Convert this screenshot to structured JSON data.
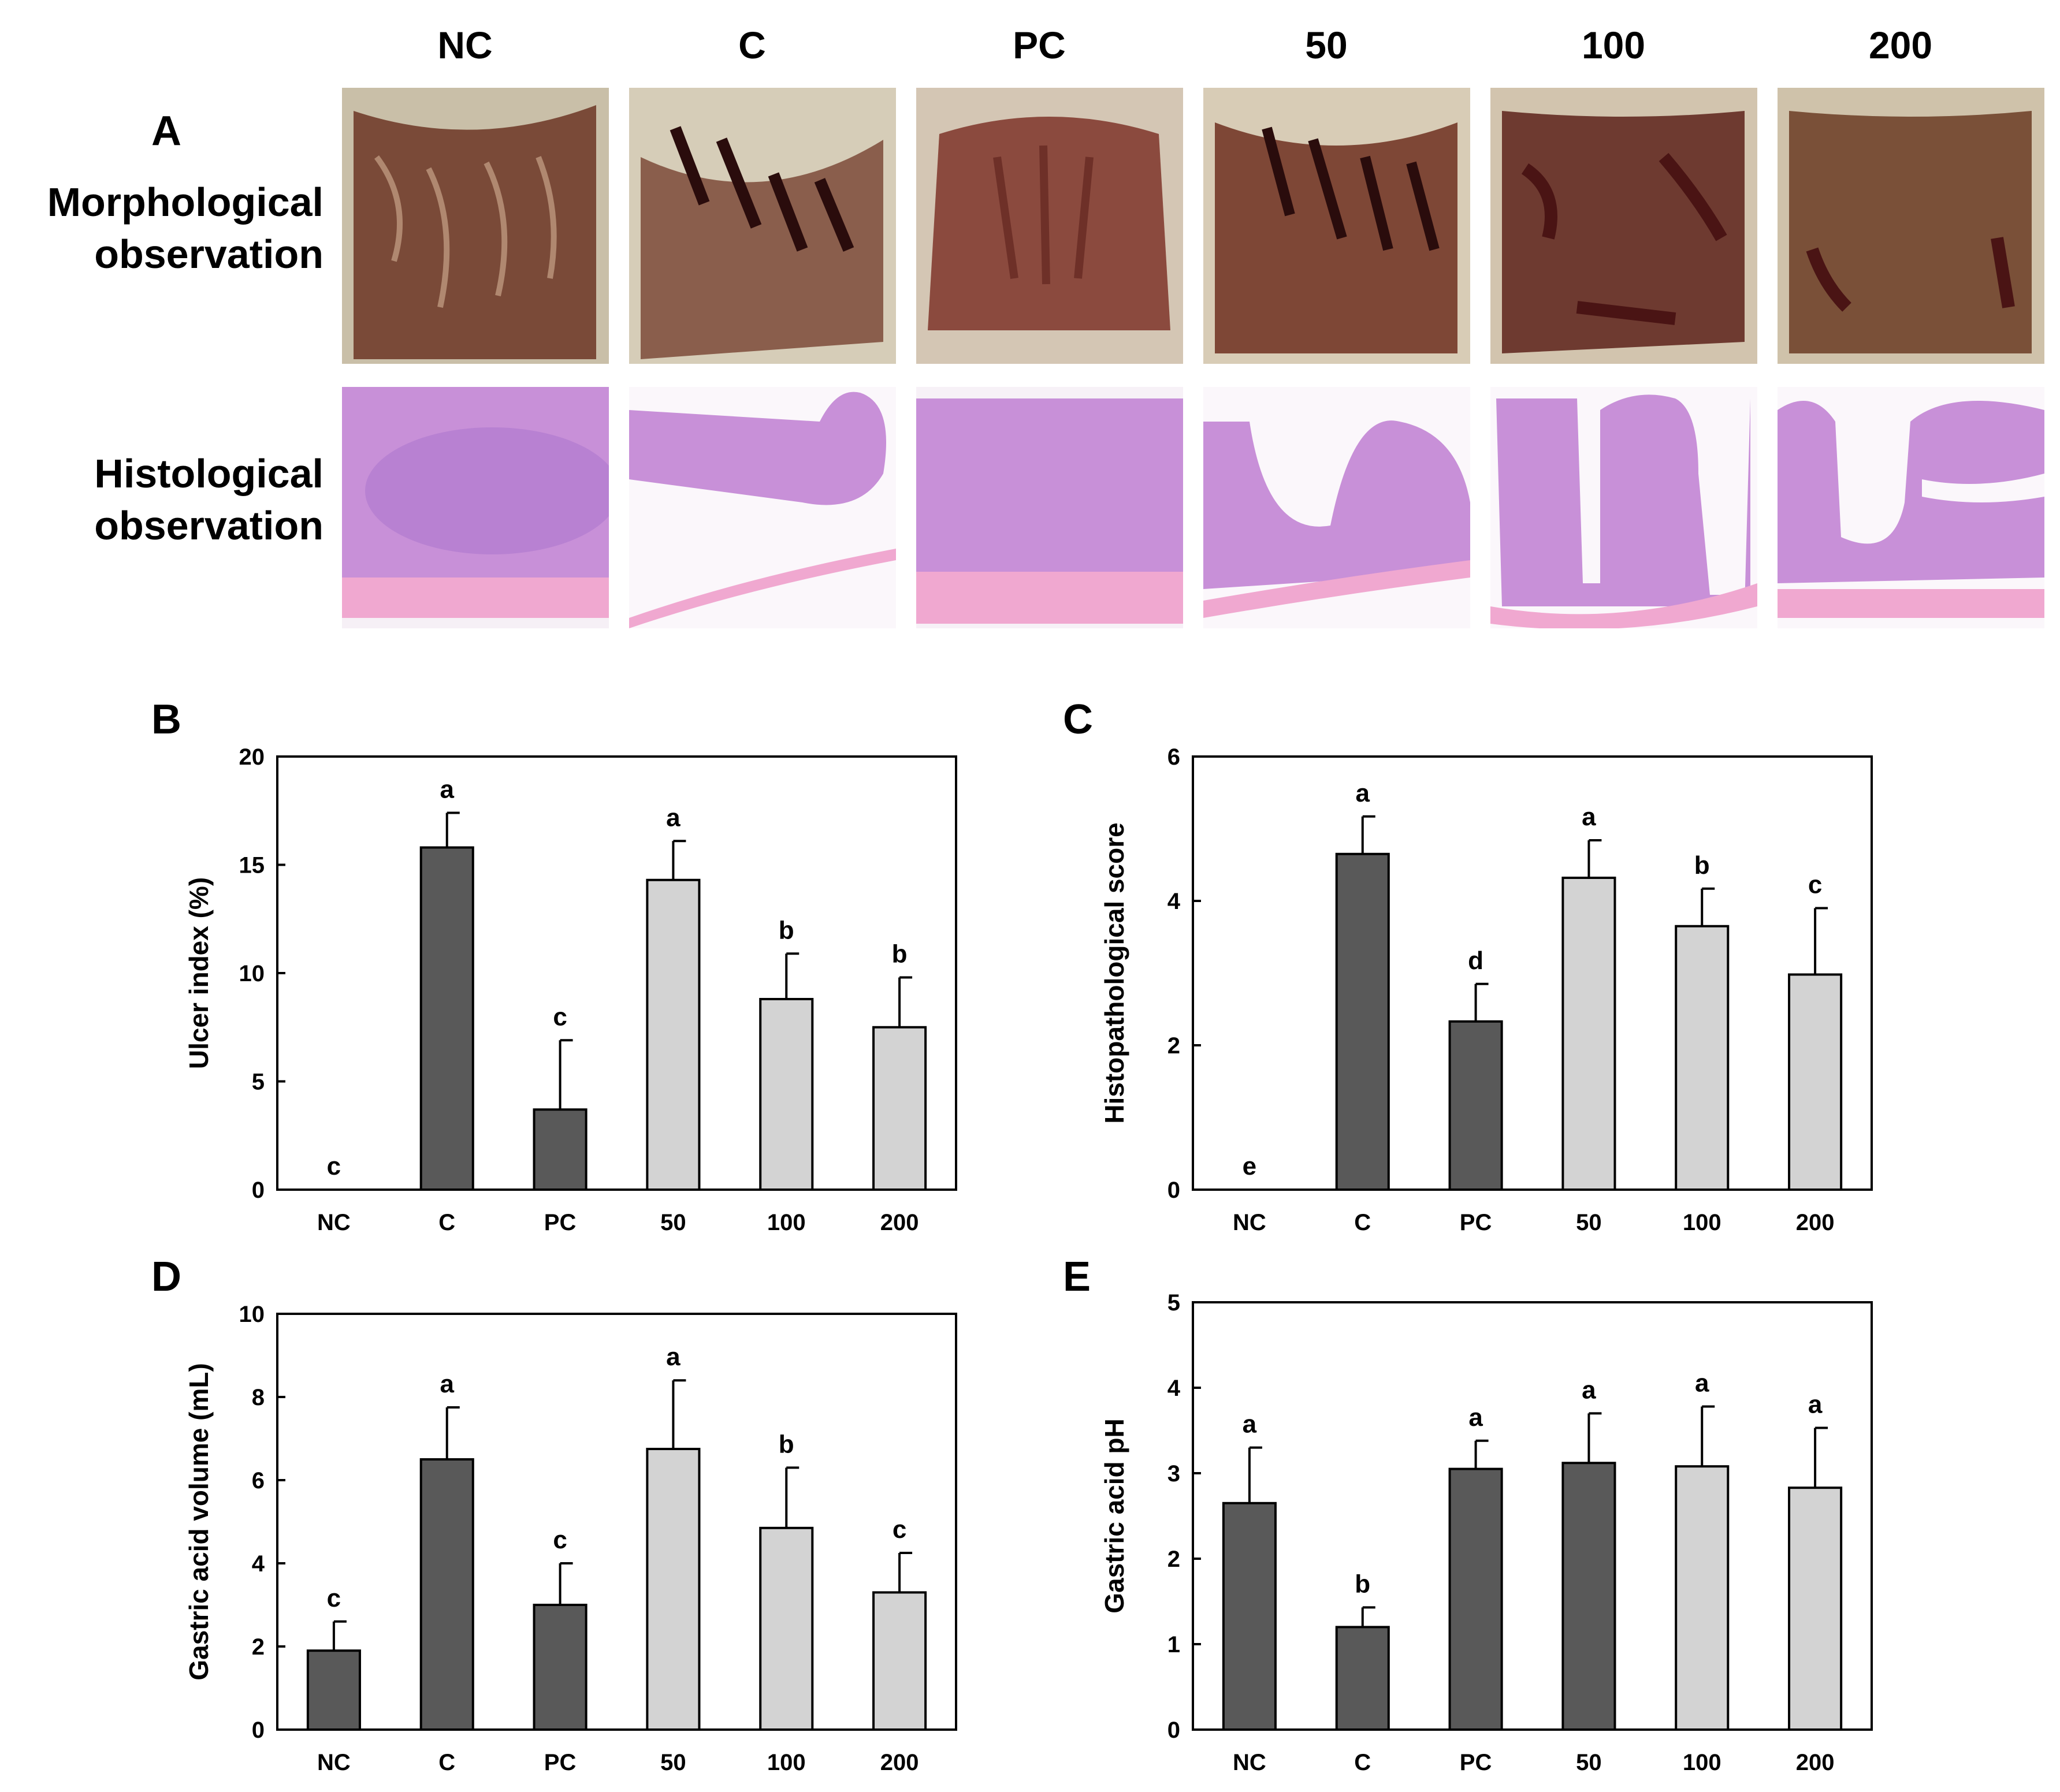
{
  "figure": {
    "columns": [
      "NC",
      "C",
      "PC",
      "50",
      "100",
      "200"
    ],
    "panel_a": {
      "letter": "A",
      "morph_label": [
        "Morphological",
        "observation"
      ],
      "histo_label": [
        "Histological",
        "observation"
      ]
    }
  },
  "colors": {
    "dark_bar": "#595959",
    "light_bar": "#d3d3d3",
    "stomach_base": "#7a4a3a",
    "stomach_edge": "#c9b9a0",
    "ulcer": "#2a0c0c",
    "tissue_purple": "#c08ad8",
    "tissue_pink": "#f0a8d0"
  },
  "chart_data": [
    {
      "panel": "B",
      "type": "bar",
      "categories": [
        "NC",
        "C",
        "PC",
        "50",
        "100",
        "200"
      ],
      "values": [
        0,
        15.8,
        3.7,
        14.3,
        8.8,
        7.5
      ],
      "errors": [
        0,
        1.6,
        3.2,
        1.8,
        2.1,
        2.3
      ],
      "letters": [
        "c",
        "a",
        "c",
        "a",
        "b",
        "b"
      ],
      "ylabel": "Ulcer index (%)",
      "ylim": [
        0,
        20
      ],
      "yticks": [
        0,
        5,
        10,
        15,
        20
      ],
      "bar_colors": [
        "dark",
        "dark",
        "dark",
        "light",
        "light",
        "light"
      ]
    },
    {
      "panel": "C",
      "type": "bar",
      "categories": [
        "NC",
        "C",
        "PC",
        "50",
        "100",
        "200"
      ],
      "values": [
        0,
        4.65,
        2.33,
        4.32,
        3.65,
        2.98
      ],
      "errors": [
        0,
        0.52,
        0.52,
        0.52,
        0.52,
        0.92
      ],
      "letters": [
        "e",
        "a",
        "d",
        "a",
        "b",
        "c"
      ],
      "ylabel": "Histopathological score",
      "ylim": [
        0,
        6
      ],
      "yticks": [
        0,
        2,
        4,
        6
      ],
      "bar_colors": [
        "dark",
        "dark",
        "dark",
        "light",
        "light",
        "light"
      ]
    },
    {
      "panel": "D",
      "type": "bar",
      "categories": [
        "NC",
        "C",
        "PC",
        "50",
        "100",
        "200"
      ],
      "values": [
        1.9,
        6.5,
        3.0,
        6.75,
        4.85,
        3.3
      ],
      "errors": [
        0.7,
        1.25,
        1.0,
        1.65,
        1.45,
        0.95
      ],
      "letters": [
        "c",
        "a",
        "c",
        "a",
        "b",
        "c"
      ],
      "ylabel": "Gastric acid volume (mL)",
      "ylim": [
        0,
        10
      ],
      "yticks": [
        0,
        2,
        4,
        6,
        8,
        10
      ],
      "bar_colors": [
        "dark",
        "dark",
        "dark",
        "light",
        "light",
        "light"
      ]
    },
    {
      "panel": "E",
      "type": "bar",
      "categories": [
        "NC",
        "C",
        "PC",
        "50",
        "100",
        "200"
      ],
      "values": [
        2.65,
        1.2,
        3.05,
        3.12,
        3.08,
        2.83
      ],
      "errors": [
        0.65,
        0.23,
        0.33,
        0.58,
        0.7,
        0.7
      ],
      "letters": [
        "a",
        "b",
        "a",
        "a",
        "a",
        "a"
      ],
      "ylabel": "Gastric acid pH",
      "ylim": [
        0,
        5
      ],
      "yticks": [
        0,
        1,
        2,
        3,
        4,
        5
      ],
      "bar_colors": [
        "dark",
        "dark",
        "dark",
        "dark",
        "light",
        "light"
      ]
    }
  ]
}
